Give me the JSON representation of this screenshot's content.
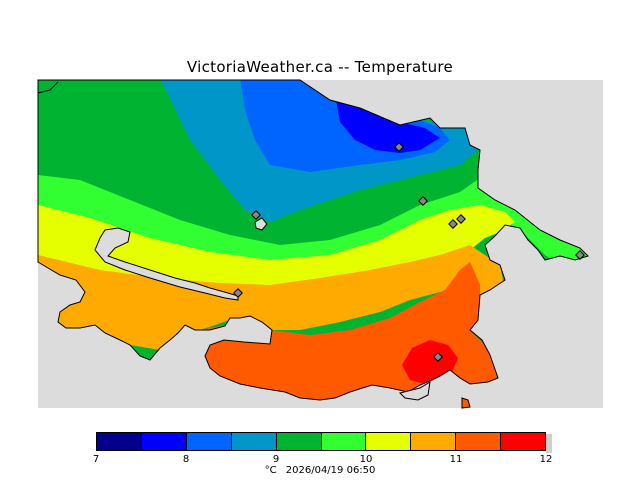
{
  "title": "VictoriaWeather.ca -- Temperature",
  "colors": {
    "background_ocean": "#dcdcdc",
    "land_edge": "#000000",
    "station_marker": "#888888"
  },
  "legend": {
    "bins": [
      {
        "color": "#00008c"
      },
      {
        "color": "#0000ff"
      },
      {
        "color": "#0064ff"
      },
      {
        "color": "#0096c8"
      },
      {
        "color": "#00b432"
      },
      {
        "color": "#32ff32"
      },
      {
        "color": "#e6ff00"
      },
      {
        "color": "#ffaa00"
      },
      {
        "color": "#ff5a00"
      },
      {
        "color": "#ff0000"
      }
    ],
    "ticks": [
      "7",
      "8",
      "9",
      "10",
      "11",
      "12"
    ],
    "unit": "°C",
    "timestamp": "2026/04/19 06:50"
  },
  "stations_count_visible": 9
}
